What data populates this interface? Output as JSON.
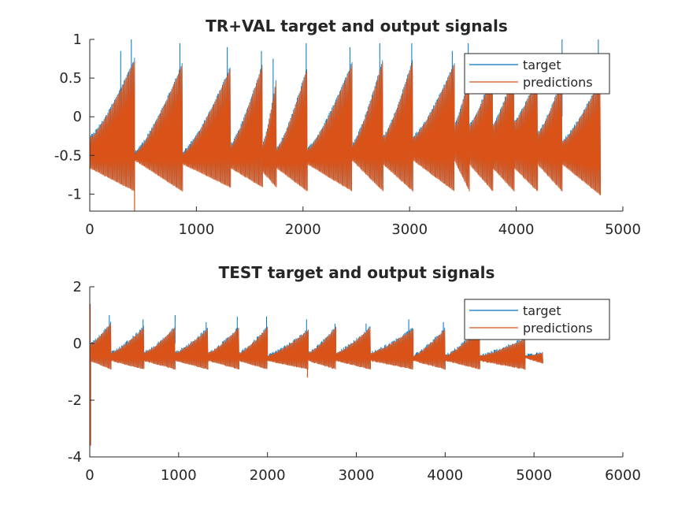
{
  "colors": {
    "target": "#0072BD",
    "predictions": "#D95319",
    "axis": "#262626",
    "background": "#ffffff"
  },
  "chart_data": [
    {
      "type": "line",
      "title": "TR+VAL target and output signals",
      "xlabel": "",
      "ylabel": "",
      "xlim": [
        0,
        5000
      ],
      "ylim": [
        -1.22,
        1
      ],
      "xticks": [
        0,
        1000,
        2000,
        3000,
        4000,
        5000
      ],
      "yticks": [
        -1,
        -0.5,
        0,
        0.5,
        1
      ],
      "xtick_labels": [
        "0",
        "1000",
        "2000",
        "3000",
        "4000",
        "5000"
      ],
      "ytick_labels": [
        "-1",
        "-0.5",
        "0",
        "0.5",
        "1"
      ],
      "grid": false,
      "legend": {
        "position": "top-right",
        "entries": [
          "target",
          "predictions"
        ]
      },
      "series": [
        {
          "name": "target",
          "color": "#0072BD"
        },
        {
          "name": "predictions",
          "color": "#D95319"
        }
      ],
      "x_end": 4800,
      "cycle_boundaries": [
        0,
        420,
        870,
        1320,
        1620,
        1750,
        2040,
        2460,
        2750,
        3030,
        3420,
        3560,
        3780,
        3980,
        4200,
        4430,
        4790
      ],
      "cycle_upper_start": [
        -0.25,
        -0.45,
        -0.45,
        -0.35,
        -0.35,
        -0.4,
        -0.4,
        -0.35,
        -0.25,
        -0.25,
        -0.1,
        -0.1,
        -0.1,
        -0.05,
        -0.2,
        -0.3
      ],
      "cycle_upper_end": [
        0.75,
        0.7,
        0.65,
        0.7,
        0.5,
        0.65,
        0.7,
        0.75,
        0.75,
        0.7,
        0.55,
        0.6,
        0.6,
        0.55,
        0.5,
        0.5
      ],
      "cycle_lower_start": [
        -0.65,
        -0.55,
        -0.6,
        -0.65,
        -0.7,
        -0.65,
        -0.6,
        -0.55,
        -0.6,
        -0.55,
        -0.55,
        -0.6,
        -0.65,
        -0.65,
        -0.6,
        -0.6
      ],
      "cycle_lower_end": [
        -0.95,
        -0.95,
        -0.9,
        -0.9,
        -0.9,
        -0.95,
        -0.95,
        -0.95,
        -0.95,
        -0.95,
        -0.95,
        -0.95,
        -0.95,
        -0.95,
        -0.95,
        -1.0
      ],
      "target_spikes": [
        {
          "x": 290,
          "y": 0.85
        },
        {
          "x": 390,
          "y": 1.0
        },
        {
          "x": 845,
          "y": 0.95
        },
        {
          "x": 1290,
          "y": 0.9
        },
        {
          "x": 1610,
          "y": 0.85
        },
        {
          "x": 1720,
          "y": 0.75
        },
        {
          "x": 2030,
          "y": 0.95
        },
        {
          "x": 2440,
          "y": 0.9
        },
        {
          "x": 2720,
          "y": 0.95
        },
        {
          "x": 3020,
          "y": 0.95
        },
        {
          "x": 3400,
          "y": 0.85
        },
        {
          "x": 3550,
          "y": 0.95
        },
        {
          "x": 3770,
          "y": 0.8
        },
        {
          "x": 3960,
          "y": 0.75
        },
        {
          "x": 4190,
          "y": 0.7
        },
        {
          "x": 4430,
          "y": 1.0
        },
        {
          "x": 4770,
          "y": 1.0
        }
      ],
      "pred_dips": [
        {
          "x": 420,
          "y": -1.22
        }
      ]
    },
    {
      "type": "line",
      "title": "TEST target and output signals",
      "xlabel": "",
      "ylabel": "",
      "xlim": [
        0,
        6000
      ],
      "ylim": [
        -4,
        2
      ],
      "xticks": [
        0,
        1000,
        2000,
        3000,
        4000,
        5000,
        6000
      ],
      "yticks": [
        -4,
        -2,
        0,
        2
      ],
      "xtick_labels": [
        "0",
        "1000",
        "2000",
        "3000",
        "4000",
        "5000",
        "6000"
      ],
      "ytick_labels": [
        "-4",
        "-2",
        "0",
        "2"
      ],
      "grid": false,
      "legend": {
        "position": "top-right",
        "entries": [
          "target",
          "predictions"
        ]
      },
      "series": [
        {
          "name": "target",
          "color": "#0072BD"
        },
        {
          "name": "predictions",
          "color": "#D95319"
        }
      ],
      "x_end": 5100,
      "cycle_boundaries": [
        0,
        240,
        610,
        960,
        1330,
        1680,
        2000,
        2460,
        2770,
        3160,
        3640,
        4000,
        4390,
        4900,
        5100
      ],
      "cycle_upper_start": [
        0.0,
        -0.3,
        -0.3,
        -0.3,
        -0.3,
        -0.3,
        -0.4,
        -0.3,
        -0.3,
        -0.3,
        -0.4,
        -0.4,
        -0.4,
        -0.4
      ],
      "cycle_upper_end": [
        0.75,
        0.6,
        0.6,
        0.55,
        0.6,
        0.6,
        0.5,
        0.6,
        0.6,
        0.55,
        0.55,
        0.6,
        0.2,
        -0.3
      ],
      "cycle_lower_start": [
        -0.6,
        -0.6,
        -0.6,
        -0.6,
        -0.6,
        -0.6,
        -0.6,
        -0.6,
        -0.6,
        -0.6,
        -0.6,
        -0.6,
        -0.6,
        -0.5
      ],
      "cycle_lower_end": [
        -0.9,
        -0.9,
        -0.9,
        -0.9,
        -0.9,
        -0.9,
        -0.9,
        -0.9,
        -0.9,
        -0.9,
        -0.9,
        -0.9,
        -0.9,
        -0.7
      ],
      "target_spikes": [
        {
          "x": 220,
          "y": 1.0
        },
        {
          "x": 600,
          "y": 0.85
        },
        {
          "x": 960,
          "y": 1.0
        },
        {
          "x": 1310,
          "y": 0.75
        },
        {
          "x": 1660,
          "y": 0.95
        },
        {
          "x": 1990,
          "y": 0.95
        },
        {
          "x": 2440,
          "y": 0.85
        },
        {
          "x": 2760,
          "y": 0.7
        },
        {
          "x": 3110,
          "y": 0.7
        },
        {
          "x": 3590,
          "y": 0.85
        },
        {
          "x": 3980,
          "y": 0.75
        }
      ],
      "pred_dips": [
        {
          "x": 10,
          "y": -3.6
        },
        {
          "x": 2450,
          "y": -1.2
        }
      ],
      "pred_spikes": [
        {
          "x": 5,
          "y": 1.4
        }
      ]
    }
  ]
}
